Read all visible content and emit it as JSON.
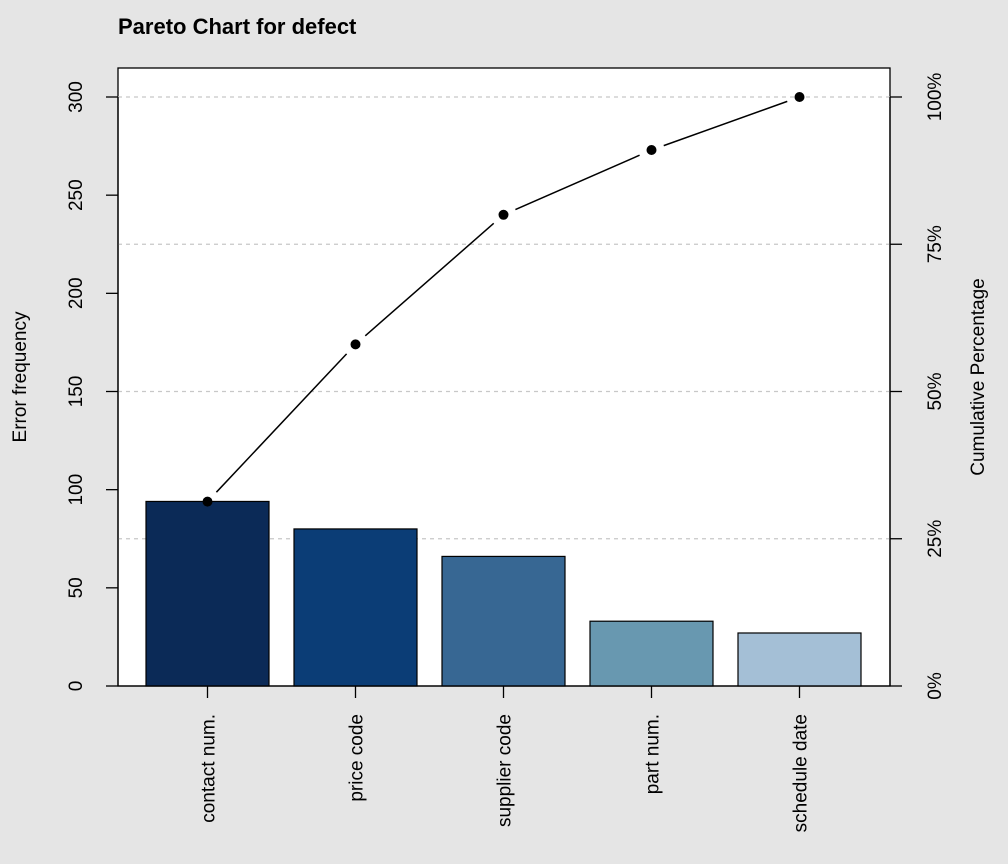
{
  "chart_data": {
    "type": "bar",
    "title": "Pareto Chart for defect",
    "categories": [
      "contact num.",
      "price code",
      "supplier code",
      "part num.",
      "schedule date"
    ],
    "values": [
      94,
      80,
      66,
      33,
      27
    ],
    "cumulative_percent": [
      31.3,
      58.0,
      80.0,
      91.0,
      100.0
    ],
    "ylabel": "Error frequency",
    "ylabel_right": "Cumulative Percentage",
    "ylim": [
      0,
      300
    ],
    "y_ticks": [
      "0",
      "50",
      "100",
      "150",
      "200",
      "250",
      "300"
    ],
    "y2_ticks": [
      "0%",
      "25%",
      "50%",
      "75%",
      "100%"
    ],
    "bar_colors": [
      "#0b2a57",
      "#0b3d76",
      "#376793",
      "#6898b0",
      "#a4bfd6"
    ],
    "grid": "dotted horizontal at cumulative quartiles",
    "line_series": "cumulative percentage with points"
  }
}
